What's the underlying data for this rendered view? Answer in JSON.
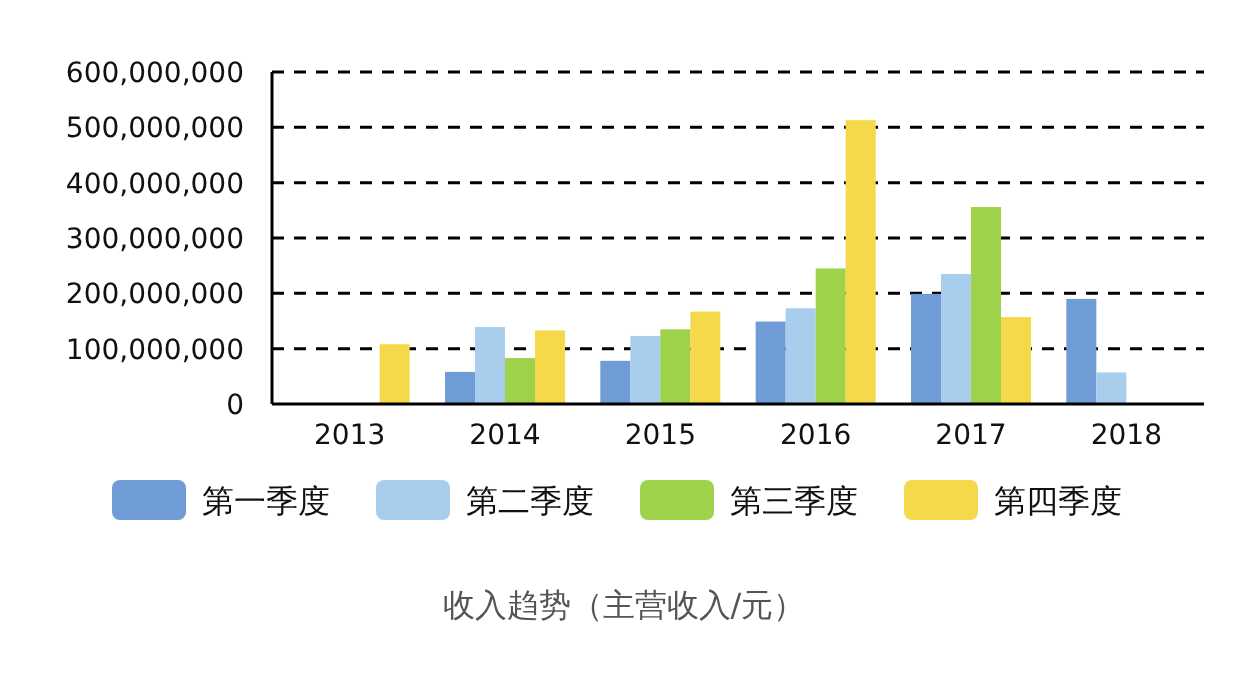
{
  "chart_data": {
    "type": "bar",
    "title": "收入趋势（主营收入/元）",
    "categories": [
      "2013",
      "2014",
      "2015",
      "2016",
      "2017",
      "2018"
    ],
    "series": [
      {
        "name": "第一季度",
        "color": "#6f9bd6",
        "values": [
          null,
          58000000,
          78000000,
          149000000,
          199000000,
          190000000
        ]
      },
      {
        "name": "第二季度",
        "color": "#a9cdec",
        "values": [
          null,
          139000000,
          123000000,
          173000000,
          235000000,
          57000000
        ]
      },
      {
        "name": "第三季度",
        "color": "#9ed24a",
        "values": [
          null,
          83000000,
          135000000,
          245000000,
          356000000,
          null
        ]
      },
      {
        "name": "第四季度",
        "color": "#f5d94a",
        "values": [
          108000000,
          133000000,
          167000000,
          513000000,
          157000000,
          null
        ]
      }
    ],
    "ylim": [
      0,
      600000000
    ],
    "yticks": [
      0,
      {
        "value": 100000000,
        "label": "100,000,000"
      },
      {
        "value": 200000000,
        "label": "200,000,000"
      },
      {
        "value": 300000000,
        "label": "300,000,000"
      },
      {
        "value": 400000000,
        "label": "400,000,000"
      },
      {
        "value": 500000000,
        "label": "500,000,000"
      },
      {
        "value": 600000000,
        "label": "600,000,000"
      }
    ],
    "grid": "y",
    "legend": "bottom"
  }
}
